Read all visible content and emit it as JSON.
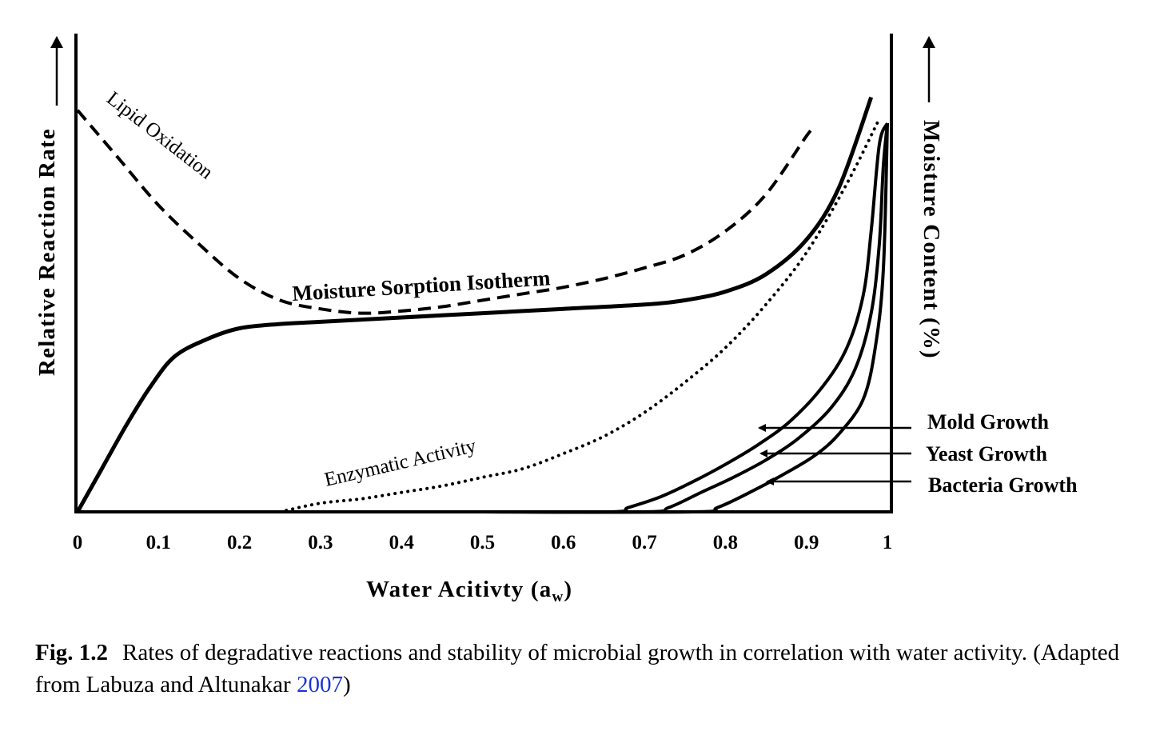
{
  "chart_data": {
    "type": "line",
    "xlabel_main": "Water Acitivty (a",
    "xlabel_sub": "w",
    "xlabel_end": ")",
    "ylabel_left": "Relative Reaction Rate",
    "ylabel_right": "Moisture Content (%)",
    "xlim": [
      0,
      1
    ],
    "ylim": [
      0,
      1
    ],
    "x_ticks": [
      "0",
      "0.1",
      "0.2",
      "0.3",
      "0.4",
      "0.5",
      "0.6",
      "0.7",
      "0.8",
      "0.9",
      "1"
    ],
    "grid": false,
    "series": [
      {
        "name": "Lipid Oxidation",
        "style": "dashed",
        "points": [
          [
            0,
            0.93
          ],
          [
            0.05,
            0.82
          ],
          [
            0.1,
            0.71
          ],
          [
            0.15,
            0.62
          ],
          [
            0.2,
            0.54
          ],
          [
            0.25,
            0.49
          ],
          [
            0.3,
            0.47
          ],
          [
            0.35,
            0.46
          ],
          [
            0.4,
            0.465
          ],
          [
            0.45,
            0.475
          ],
          [
            0.5,
            0.49
          ],
          [
            0.55,
            0.505
          ],
          [
            0.6,
            0.52
          ],
          [
            0.65,
            0.54
          ],
          [
            0.7,
            0.565
          ],
          [
            0.75,
            0.595
          ],
          [
            0.8,
            0.65
          ],
          [
            0.85,
            0.735
          ],
          [
            0.9,
            0.87
          ],
          [
            0.91,
            0.89
          ]
        ]
      },
      {
        "name": "Moisture Sorption Isotherm",
        "style": "solid",
        "points": [
          [
            0,
            0
          ],
          [
            0.03,
            0.1
          ],
          [
            0.06,
            0.2
          ],
          [
            0.09,
            0.29
          ],
          [
            0.12,
            0.36
          ],
          [
            0.16,
            0.4
          ],
          [
            0.2,
            0.425
          ],
          [
            0.25,
            0.435
          ],
          [
            0.3,
            0.44
          ],
          [
            0.4,
            0.45
          ],
          [
            0.5,
            0.46
          ],
          [
            0.6,
            0.47
          ],
          [
            0.7,
            0.48
          ],
          [
            0.75,
            0.49
          ],
          [
            0.8,
            0.51
          ],
          [
            0.85,
            0.55
          ],
          [
            0.9,
            0.63
          ],
          [
            0.94,
            0.75
          ],
          [
            0.98,
            0.96
          ]
        ]
      },
      {
        "name": "Enzymatic Activity",
        "style": "dotted",
        "points": [
          [
            0.25,
            0.0
          ],
          [
            0.3,
            0.02
          ],
          [
            0.35,
            0.03
          ],
          [
            0.4,
            0.045
          ],
          [
            0.45,
            0.06
          ],
          [
            0.5,
            0.08
          ],
          [
            0.55,
            0.1
          ],
          [
            0.6,
            0.135
          ],
          [
            0.65,
            0.175
          ],
          [
            0.7,
            0.23
          ],
          [
            0.75,
            0.3
          ],
          [
            0.8,
            0.38
          ],
          [
            0.85,
            0.48
          ],
          [
            0.9,
            0.6
          ],
          [
            0.95,
            0.76
          ],
          [
            0.99,
            0.91
          ]
        ]
      },
      {
        "name": "Mold Growth",
        "style": "solid",
        "points": [
          [
            0,
            0
          ],
          [
            0.5,
            0
          ],
          [
            0.66,
            0.0
          ],
          [
            0.68,
            0.01
          ],
          [
            0.72,
            0.035
          ],
          [
            0.76,
            0.07
          ],
          [
            0.8,
            0.11
          ],
          [
            0.84,
            0.155
          ],
          [
            0.88,
            0.21
          ],
          [
            0.92,
            0.29
          ],
          [
            0.95,
            0.38
          ],
          [
            0.97,
            0.5
          ],
          [
            0.98,
            0.65
          ],
          [
            0.99,
            0.85
          ],
          [
            1.0,
            0.9
          ]
        ]
      },
      {
        "name": "Yeast Growth",
        "style": "solid",
        "points": [
          [
            0.5,
            0
          ],
          [
            0.7,
            0.0
          ],
          [
            0.73,
            0.01
          ],
          [
            0.77,
            0.045
          ],
          [
            0.81,
            0.08
          ],
          [
            0.85,
            0.12
          ],
          [
            0.89,
            0.17
          ],
          [
            0.93,
            0.24
          ],
          [
            0.96,
            0.33
          ],
          [
            0.98,
            0.46
          ],
          [
            0.99,
            0.62
          ],
          [
            0.995,
            0.8
          ],
          [
            1.0,
            0.9
          ]
        ]
      },
      {
        "name": "Bacteria Growth",
        "style": "solid",
        "points": [
          [
            0.5,
            0
          ],
          [
            0.76,
            0.0
          ],
          [
            0.79,
            0.01
          ],
          [
            0.83,
            0.045
          ],
          [
            0.87,
            0.085
          ],
          [
            0.91,
            0.13
          ],
          [
            0.94,
            0.18
          ],
          [
            0.97,
            0.26
          ],
          [
            0.985,
            0.38
          ],
          [
            0.995,
            0.56
          ],
          [
            1.0,
            0.9
          ]
        ]
      }
    ],
    "legend": [
      "Mold Growth",
      "Yeast Growth",
      "Bacteria Growth"
    ]
  },
  "caption": {
    "figure_number": "Fig. 1.2",
    "text": "Rates of degradative reactions and stability of microbial growth in correlation with water activity. (Adapted from Labuza and Altunakar ",
    "citation_year": "2007",
    "closing": ")"
  }
}
